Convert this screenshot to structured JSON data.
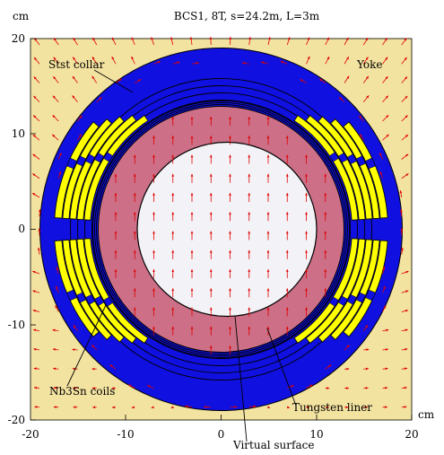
{
  "title": "BCS1, 8T, s=24.2m, L=3m",
  "unit_y": "cm",
  "unit_x": "cm",
  "axes": {
    "x_ticks": [
      "-20",
      "-10",
      "0",
      "10",
      "20"
    ],
    "y_ticks": [
      "20",
      "10",
      "0",
      "-10",
      "-20"
    ],
    "x_range": [
      -20,
      20
    ],
    "y_range": [
      -20,
      20
    ]
  },
  "labels": {
    "stst_collar": "Stst collar",
    "yoke": "Yoke",
    "coils": "Nb3Sn coils",
    "liner": "Tungsten liner",
    "virtual_surface": "Virtual surface"
  },
  "colors": {
    "background": "#f3e3a0",
    "yoke": "#1010e0",
    "coil": "#ffff00",
    "liner": "#cc6f87",
    "aperture": "#f3f3f7",
    "field_arrow": "#e00000",
    "outline": "#000000"
  }
}
